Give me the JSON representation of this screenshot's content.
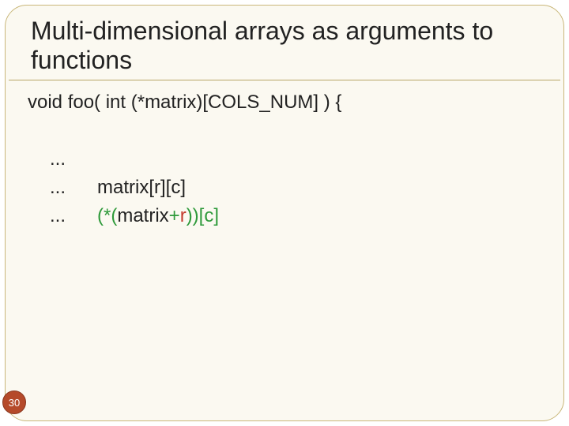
{
  "title": "Multi-dimensional arrays as arguments to functions",
  "code": {
    "signature": "void foo( int (*matrix)[COLS_NUM] ) {",
    "line1_dots": "...",
    "line2_dots": "...",
    "line2_text": "    matrix[r][c]",
    "line3_dots": "...",
    "line3_prefix": "  (*(",
    "line3_mid": "matrix",
    "line3_plus": "+",
    "line3_r": "r",
    "line3_suffix": "))[c]"
  },
  "slide_number": "30",
  "colors": {
    "background": "#fbf9f1",
    "border": "#c9b77a",
    "text": "#222222",
    "green": "#2e9a3a",
    "red": "#c43a2e",
    "badge_bg": "#b54a2a",
    "badge_text": "#ffffff"
  }
}
